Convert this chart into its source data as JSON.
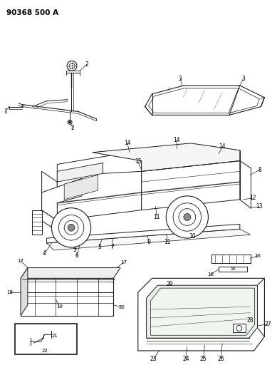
{
  "title": "90368 500 A",
  "bg_color": "#ffffff",
  "line_color": "#1a1a1a",
  "title_fontsize": 7.5,
  "title_bold": true,
  "fig_width": 3.82,
  "fig_height": 5.33,
  "dpi": 100
}
